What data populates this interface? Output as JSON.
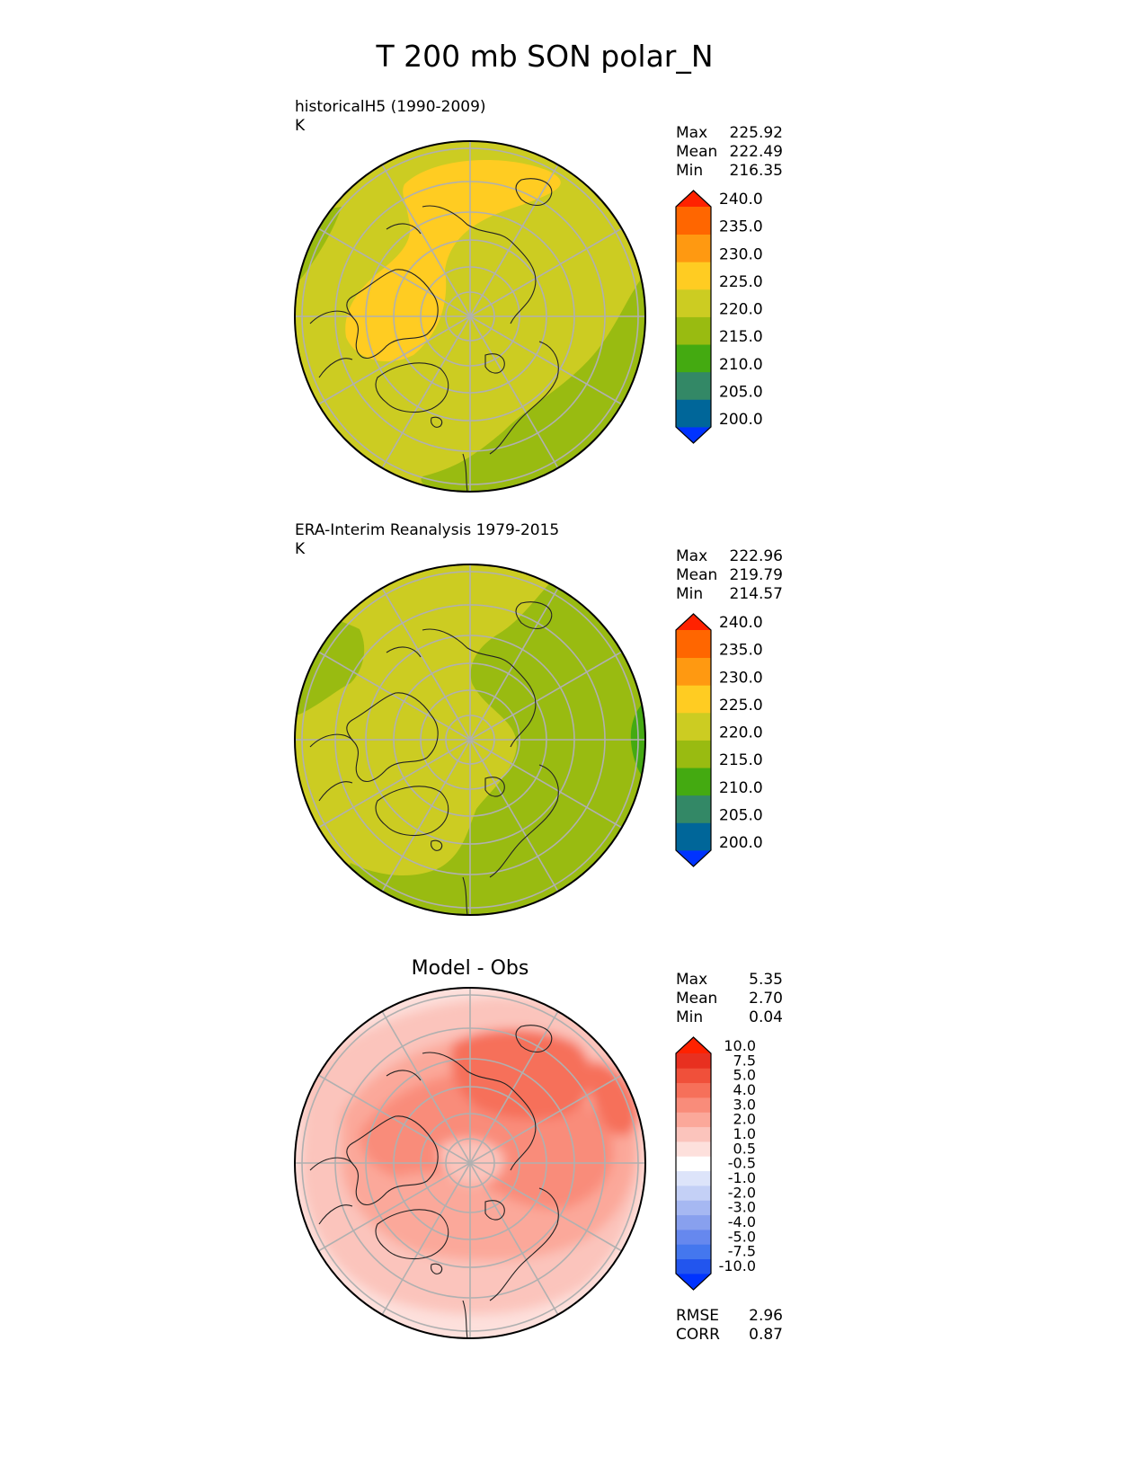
{
  "title": "T 200 mb SON polar_N",
  "panels": [
    {
      "label_line1": "historicalH5 (1990-2009)",
      "label_line2": "K",
      "center_title": "",
      "stats": [
        {
          "name": "Max",
          "value": "225.92"
        },
        {
          "name": "Mean",
          "value": "222.49"
        },
        {
          "name": "Min",
          "value": "216.35"
        }
      ],
      "colorbar": {
        "type": "abs",
        "ticks": [
          "200.0",
          "205.0",
          "210.0",
          "215.0",
          "220.0",
          "225.0",
          "230.0",
          "235.0",
          "240.0"
        ]
      },
      "bottom_stats": []
    },
    {
      "label_line1": "ERA-Interim Reanalysis 1979-2015",
      "label_line2": "K",
      "center_title": "",
      "stats": [
        {
          "name": "Max",
          "value": "222.96"
        },
        {
          "name": "Mean",
          "value": "219.79"
        },
        {
          "name": "Min",
          "value": "214.57"
        }
      ],
      "colorbar": {
        "type": "abs",
        "ticks": [
          "200.0",
          "205.0",
          "210.0",
          "215.0",
          "220.0",
          "225.0",
          "230.0",
          "235.0",
          "240.0"
        ]
      },
      "bottom_stats": []
    },
    {
      "label_line1": "",
      "label_line2": "",
      "center_title": "Model - Obs",
      "stats": [
        {
          "name": "Max",
          "value": "5.35"
        },
        {
          "name": "Mean",
          "value": "2.70"
        },
        {
          "name": "Min",
          "value": "0.04"
        }
      ],
      "colorbar": {
        "type": "diff",
        "ticks": [
          "-10.0",
          "-7.5",
          "-5.0",
          "-4.0",
          "-3.0",
          "-2.0",
          "-1.0",
          "-0.5",
          "0.5",
          "1.0",
          "2.0",
          "3.0",
          "4.0",
          "5.0",
          "7.5",
          "10.0"
        ]
      },
      "bottom_stats": [
        {
          "name": "RMSE",
          "value": "2.96"
        },
        {
          "name": "CORR",
          "value": "0.87"
        }
      ]
    }
  ],
  "chart_data": {
    "type": "heatmap",
    "projection": "north polar stereographic",
    "colors": {
      "abs_levels": [
        "#0033ff",
        "#006699",
        "#338866",
        "#44aa11",
        "#99bb11",
        "#cccc22",
        "#ffcc22",
        "#ff9911",
        "#ff6600",
        "#ff2200"
      ],
      "diff_levels": [
        "#0033ff",
        "#2255ee",
        "#4477ee",
        "#6688ee",
        "#88a0ee",
        "#a6b8f2",
        "#c4d0f6",
        "#dde4fa",
        "#ffffff",
        "#fde0dc",
        "#fbc4bc",
        "#fba89a",
        "#f98c7a",
        "#f6705a",
        "#f0503a",
        "#e83020",
        "#ff2200"
      ]
    }
  }
}
